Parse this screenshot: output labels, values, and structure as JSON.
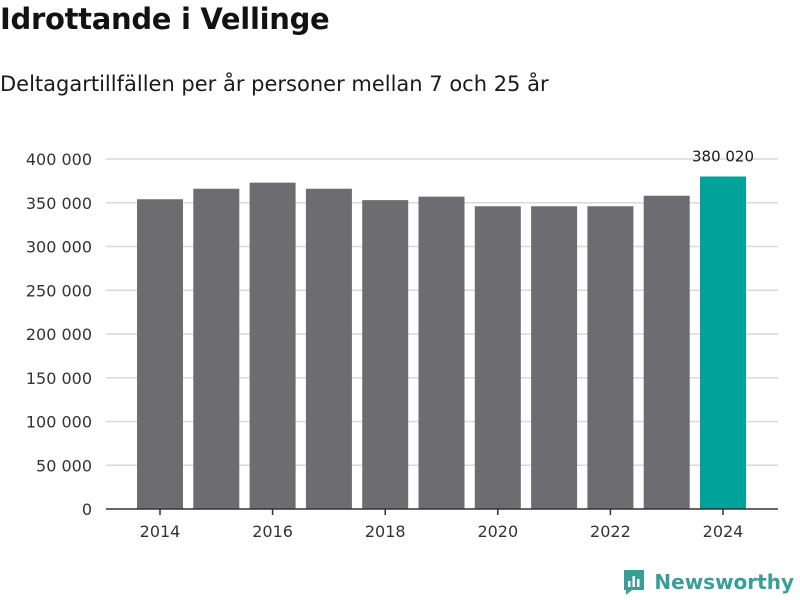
{
  "title": "Idrottande i Vellinge",
  "subtitle": "Deltagartillfällen per år personer mellan 7 och 25 år",
  "brand": {
    "name": "Newsworthy",
    "icon": "newsworthy-logo-icon"
  },
  "colors": {
    "bar": "#6d6c71",
    "highlight": "#00a39a",
    "grid": "#d9d9d9",
    "axis": "#333333"
  },
  "chart_data": {
    "type": "bar",
    "title": "Idrottande i Vellinge",
    "subtitle": "Deltagartillfällen per år personer mellan 7 och 25 år",
    "xlabel": "",
    "ylabel": "",
    "categories": [
      "2014",
      "2015",
      "2016",
      "2017",
      "2018",
      "2019",
      "2020",
      "2021",
      "2022",
      "2023",
      "2024"
    ],
    "values": [
      354000,
      366000,
      373000,
      366000,
      353000,
      357000,
      346000,
      346000,
      346000,
      358000,
      380020
    ],
    "highlight_index": 10,
    "highlight_label": "380 020",
    "ylim": [
      0,
      400000
    ],
    "y_ticks": [
      0,
      50000,
      100000,
      150000,
      200000,
      250000,
      300000,
      350000,
      400000
    ],
    "y_tick_labels": [
      "0",
      "50 000",
      "100 000",
      "150 000",
      "200 000",
      "250 000",
      "300 000",
      "350 000",
      "400 000"
    ],
    "x_tick_labels": [
      "2014",
      "2016",
      "2018",
      "2020",
      "2022",
      "2024"
    ],
    "grid": true,
    "legend": "none"
  }
}
